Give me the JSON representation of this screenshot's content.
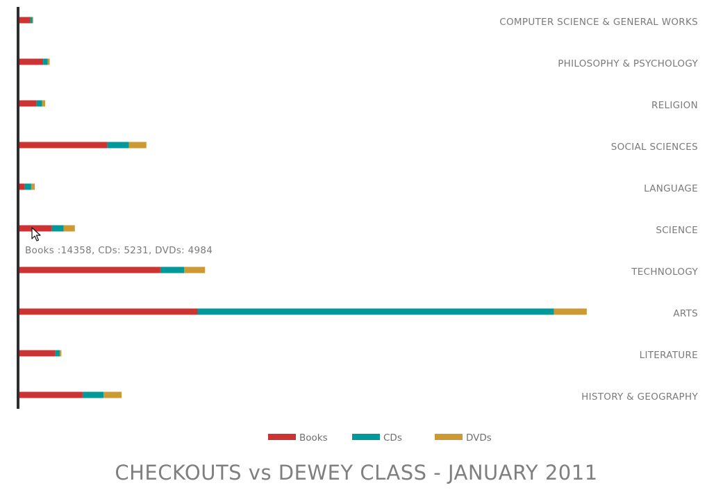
{
  "chart_data": {
    "type": "bar",
    "orientation": "horizontal",
    "stacked": true,
    "title": "CHECKOUTS vs DEWEY CLASS - JANUARY 2011",
    "categories": [
      "COMPUTER SCIENCE & GENERAL WORKS",
      "PHILOSOPHY & PSYCHOLOGY",
      "RELIGION",
      "SOCIAL SCIENCES",
      "LANGUAGE",
      "SCIENCE",
      "TECHNOLOGY",
      "ARTS",
      "LITERATURE",
      "HISTORY & GEOGRAPHY"
    ],
    "series": [
      {
        "name": "Books",
        "color": "#cc3333",
        "values": [
          4800,
          10500,
          7600,
          39000,
          2400,
          14358,
          62500,
          79000,
          15900,
          28000
        ]
      },
      {
        "name": "CDs",
        "color": "#009999",
        "values": [
          900,
          2000,
          2400,
          9500,
          2800,
          5231,
          10600,
          158000,
          2000,
          9300
        ]
      },
      {
        "name": "DVDs",
        "color": "#cc9933",
        "values": [
          400,
          900,
          1400,
          7800,
          1600,
          4984,
          9200,
          14600,
          700,
          8000
        ]
      }
    ],
    "xlim": [
      0,
      300000
    ],
    "grid": false,
    "legend_position": "bottom-center",
    "tooltip": {
      "category": "SCIENCE",
      "text": "Books :14358, CDs: 5231, DVDs: 4984"
    }
  },
  "cursor_icon": "arrow-cursor-icon",
  "axis_color": "#2a2e2e"
}
